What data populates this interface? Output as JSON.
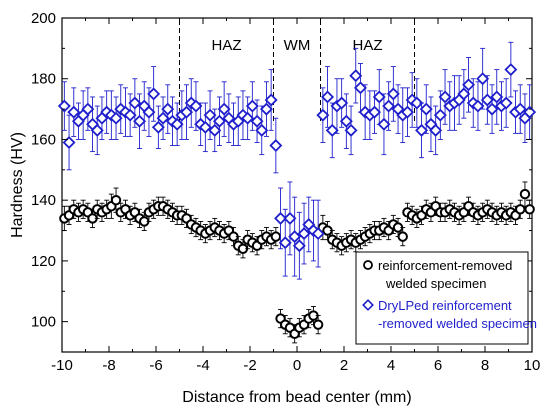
{
  "chart_data": {
    "type": "scatter",
    "title": "",
    "xlabel": "Distance from bead center (mm)",
    "ylabel": "Hardness (HV)",
    "xlim": [
      -10,
      10
    ],
    "ylim": [
      90,
      200
    ],
    "xticks": [
      -10,
      -8,
      -6,
      -4,
      -2,
      0,
      2,
      4,
      6,
      8,
      10
    ],
    "yticks": [
      100,
      120,
      140,
      160,
      180,
      200
    ],
    "legend_position": "bottom-right",
    "regions": [
      {
        "label": "HAZ",
        "x": -3.0
      },
      {
        "label": "WM",
        "x": 0.0
      },
      {
        "label": "HAZ",
        "x": 3.0
      }
    ],
    "region_boundaries": [
      -5,
      -1,
      1,
      5
    ],
    "series": [
      {
        "name": "reinforcement-removed welded specimen",
        "legend_lines": [
          "reinforcement-removed",
          "welded specimen"
        ],
        "marker": "circle",
        "color": "#000000",
        "x": [
          -9.9,
          -9.7,
          -9.5,
          -9.3,
          -9.1,
          -8.9,
          -8.7,
          -8.5,
          -8.3,
          -8.1,
          -7.9,
          -7.7,
          -7.5,
          -7.3,
          -7.1,
          -6.9,
          -6.7,
          -6.5,
          -6.3,
          -6.1,
          -5.9,
          -5.7,
          -5.5,
          -5.3,
          -5.1,
          -4.9,
          -4.7,
          -4.5,
          -4.3,
          -4.1,
          -3.9,
          -3.7,
          -3.5,
          -3.3,
          -3.1,
          -2.9,
          -2.7,
          -2.5,
          -2.3,
          -2.1,
          -1.9,
          -1.7,
          -1.5,
          -1.3,
          -1.1,
          -0.9,
          -0.7,
          -0.5,
          -0.3,
          -0.1,
          0.1,
          0.3,
          0.5,
          0.7,
          0.9,
          1.1,
          1.3,
          1.5,
          1.7,
          1.9,
          2.1,
          2.3,
          2.5,
          2.7,
          2.9,
          3.1,
          3.3,
          3.5,
          3.7,
          3.9,
          4.1,
          4.3,
          4.5,
          4.7,
          4.9,
          5.1,
          5.3,
          5.5,
          5.7,
          5.9,
          6.1,
          6.3,
          6.5,
          6.7,
          6.9,
          7.1,
          7.3,
          7.5,
          7.7,
          7.9,
          8.1,
          8.3,
          8.5,
          8.7,
          8.9,
          9.1,
          9.3,
          9.5,
          9.7,
          9.9
        ],
        "y": [
          134,
          135,
          137,
          136,
          137,
          136,
          134,
          137,
          136,
          137,
          138,
          140,
          136,
          137,
          135,
          136,
          134,
          133,
          136,
          137,
          138,
          138,
          137,
          136,
          135,
          135,
          134,
          132,
          131,
          130,
          129,
          130,
          131,
          130,
          129,
          130,
          128,
          125,
          124,
          127,
          126,
          125,
          127,
          128,
          127,
          128,
          101,
          99,
          98,
          96,
          98,
          99,
          101,
          102,
          99,
          131,
          130,
          127,
          126,
          125,
          126,
          127,
          126,
          127,
          128,
          129,
          130,
          130,
          131,
          130,
          132,
          131,
          128,
          136,
          135,
          134,
          135,
          137,
          136,
          138,
          136,
          136,
          137,
          136,
          135,
          136,
          138,
          136,
          135,
          136,
          137,
          136,
          135,
          136,
          135,
          136,
          135,
          137,
          142,
          137
        ],
        "err": [
          4,
          3,
          3,
          3,
          3,
          3,
          3,
          3,
          3,
          3,
          4,
          4,
          3,
          3,
          3,
          3,
          3,
          3,
          3,
          3,
          3,
          3,
          3,
          3,
          3,
          3,
          3,
          3,
          3,
          3,
          3,
          3,
          3,
          3,
          3,
          3,
          3,
          3,
          3,
          3,
          3,
          3,
          3,
          3,
          3,
          3,
          3,
          3,
          3,
          3,
          3,
          3,
          3,
          3,
          3,
          4,
          3,
          3,
          3,
          3,
          3,
          3,
          3,
          3,
          3,
          3,
          3,
          3,
          3,
          3,
          3,
          3,
          3,
          3,
          3,
          3,
          3,
          3,
          3,
          3,
          3,
          3,
          3,
          3,
          3,
          3,
          3,
          3,
          3,
          3,
          3,
          3,
          3,
          3,
          3,
          3,
          3,
          3,
          4,
          3
        ]
      },
      {
        "name": "DryLPed reinforcement-removed welded specimen",
        "legend_lines": [
          "DryLPed reinforcement",
          "-removed welded specimen"
        ],
        "marker": "diamond",
        "color": "#1f1fcc",
        "x": [
          -9.9,
          -9.7,
          -9.5,
          -9.3,
          -9.1,
          -8.9,
          -8.7,
          -8.5,
          -8.3,
          -8.1,
          -7.9,
          -7.7,
          -7.5,
          -7.3,
          -7.1,
          -6.9,
          -6.7,
          -6.5,
          -6.3,
          -6.1,
          -5.9,
          -5.7,
          -5.5,
          -5.3,
          -5.1,
          -4.9,
          -4.7,
          -4.5,
          -4.3,
          -4.1,
          -3.9,
          -3.7,
          -3.5,
          -3.3,
          -3.1,
          -2.9,
          -2.7,
          -2.5,
          -2.3,
          -2.1,
          -1.9,
          -1.7,
          -1.5,
          -1.3,
          -1.1,
          -0.9,
          -0.7,
          -0.5,
          -0.3,
          -0.1,
          0.1,
          0.3,
          0.5,
          0.7,
          0.9,
          1.1,
          1.3,
          1.5,
          1.7,
          1.9,
          2.1,
          2.3,
          2.5,
          2.7,
          2.9,
          3.1,
          3.3,
          3.5,
          3.7,
          3.9,
          4.1,
          4.3,
          4.5,
          4.7,
          4.9,
          5.1,
          5.3,
          5.5,
          5.7,
          5.9,
          6.1,
          6.3,
          6.5,
          6.7,
          6.9,
          7.1,
          7.3,
          7.5,
          7.7,
          7.9,
          8.1,
          8.3,
          8.5,
          8.7,
          8.9,
          9.1,
          9.3,
          9.5,
          9.7,
          9.9
        ],
        "y": [
          171,
          159,
          169,
          166,
          168,
          170,
          165,
          163,
          167,
          169,
          168,
          167,
          170,
          169,
          168,
          172,
          166,
          171,
          169,
          175,
          164,
          167,
          170,
          166,
          165,
          168,
          169,
          172,
          171,
          165,
          164,
          168,
          163,
          166,
          170,
          167,
          165,
          166,
          168,
          167,
          171,
          166,
          163,
          170,
          173,
          158,
          134,
          126,
          134,
          128,
          125,
          129,
          132,
          130,
          129,
          168,
          174,
          163,
          171,
          172,
          166,
          163,
          181,
          177,
          169,
          168,
          169,
          174,
          165,
          171,
          175,
          170,
          168,
          169,
          173,
          172,
          163,
          170,
          165,
          163,
          168,
          174,
          171,
          172,
          173,
          175,
          178,
          172,
          171,
          180,
          173,
          170,
          174,
          171,
          172,
          183,
          169,
          170,
          167,
          169
        ],
        "err": [
          8,
          9,
          8,
          6,
          8,
          7,
          9,
          8,
          7,
          7,
          8,
          7,
          8,
          8,
          7,
          8,
          9,
          8,
          8,
          9,
          7,
          7,
          8,
          8,
          7,
          8,
          9,
          8,
          8,
          7,
          8,
          8,
          7,
          8,
          9,
          8,
          7,
          8,
          8,
          7,
          8,
          7,
          8,
          9,
          10,
          9,
          10,
          11,
          12,
          13,
          11,
          10,
          9,
          10,
          11,
          9,
          10,
          9,
          9,
          8,
          9,
          8,
          9,
          8,
          9,
          8,
          7,
          9,
          10,
          8,
          9,
          8,
          9,
          8,
          9,
          8,
          9,
          8,
          9,
          8,
          8,
          9,
          8,
          9,
          8,
          8,
          9,
          8,
          8,
          10,
          8,
          8,
          9,
          8,
          8,
          9,
          7,
          8,
          8,
          9
        ]
      }
    ]
  }
}
